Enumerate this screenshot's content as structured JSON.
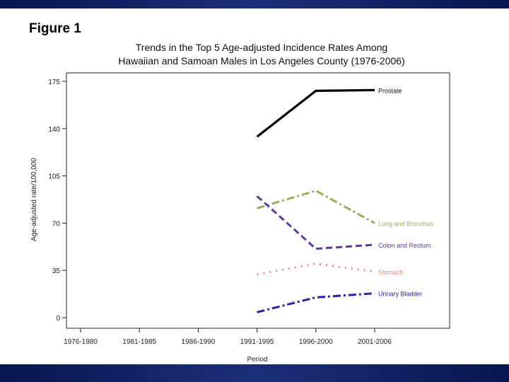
{
  "figure_label": "Figure 1",
  "chart_data": {
    "type": "line",
    "title_line1": "Trends in the Top 5 Age-adjusted Incidence Rates Among",
    "title_line2": "Hawaiian and Samoan Males in Los Angeles County (1976-2006)",
    "xlabel": "Period",
    "ylabel": "Age-adjusted rate/100,000",
    "categories": [
      "1976-1980",
      "1981-1985",
      "1986-1990",
      "1991-1995",
      "1996-2000",
      "2001-2006"
    ],
    "yticks": [
      0,
      35,
      70,
      105,
      140,
      175
    ],
    "ylim": [
      0,
      175
    ],
    "grid": false,
    "series": [
      {
        "name": "Prostate",
        "color": "#000000",
        "dash": "solid",
        "values": [
          null,
          null,
          null,
          134,
          168,
          168.5
        ]
      },
      {
        "name": "Lung and Bronchus",
        "color": "#9aab5a",
        "dash": "dashdot",
        "values": [
          null,
          null,
          null,
          81,
          94,
          70
        ]
      },
      {
        "name": "Colon and Rectum",
        "color": "#5a3aa0",
        "dash": "dashed",
        "values": [
          null,
          null,
          null,
          90,
          51,
          54
        ]
      },
      {
        "name": "Stomach",
        "color": "#e98a8a",
        "dash": "dotted",
        "values": [
          null,
          null,
          null,
          32,
          40,
          34
        ]
      },
      {
        "name": "Urinary Bladder",
        "color": "#2a1fa8",
        "dash": "dashdot",
        "values": [
          null,
          null,
          null,
          4,
          15,
          18
        ]
      }
    ]
  }
}
